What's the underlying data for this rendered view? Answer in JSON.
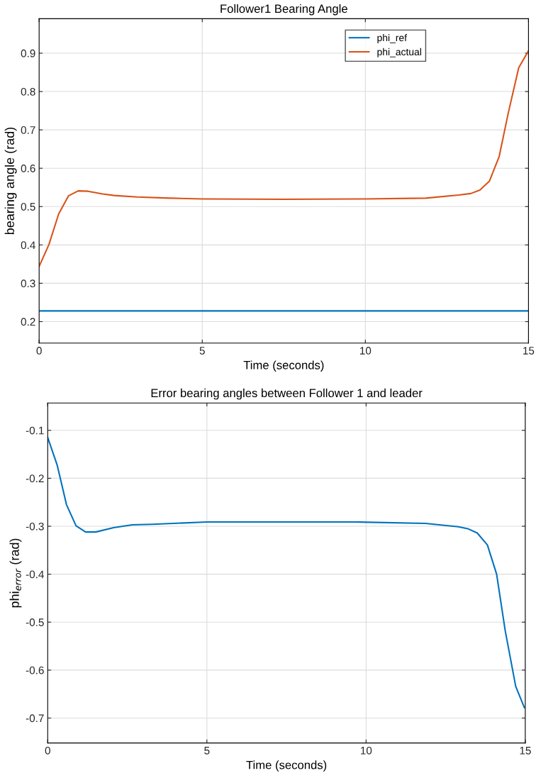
{
  "chart_data": [
    {
      "type": "line",
      "title": "Follower1 Bearing Angle",
      "xlabel": "Time (seconds)",
      "ylabel": "bearing angle (rad)",
      "xlim": [
        0,
        15
      ],
      "xticks": [
        0,
        5,
        10,
        15
      ],
      "ylim": [
        0.144,
        0.99
      ],
      "yticks": [
        0.2,
        0.3,
        0.4,
        0.5,
        0.6,
        0.7,
        0.8,
        0.9
      ],
      "grid": true,
      "legend": "top right",
      "series": [
        {
          "name": "phi_ref",
          "color": "#0072bd",
          "x": [
            0,
            15
          ],
          "values": [
            0.228,
            0.228
          ]
        },
        {
          "name": "phi_actual",
          "color": "#d95319",
          "x": [
            0,
            0.3,
            0.6,
            0.9,
            1.2,
            1.5,
            1.95,
            2.3,
            3,
            4,
            5,
            7.5,
            10,
            11.85,
            12.86,
            13.23,
            13.51,
            13.8,
            14.1,
            14.38,
            14.7,
            15
          ],
          "values": [
            0.344,
            0.401,
            0.481,
            0.528,
            0.541,
            0.54,
            0.533,
            0.529,
            0.525,
            0.522,
            0.52,
            0.519,
            0.52,
            0.522,
            0.53,
            0.534,
            0.543,
            0.566,
            0.63,
            0.744,
            0.862,
            0.906
          ]
        }
      ]
    },
    {
      "type": "line",
      "title": "Error bearing angles between Follower 1 and leader",
      "xlabel": "Time (seconds)",
      "ylabel": "phi$_{error}$ (rad)",
      "xlim": [
        0,
        15
      ],
      "xticks": [
        0,
        5,
        10,
        15
      ],
      "ylim": [
        -0.752,
        -0.043
      ],
      "yticks": [
        {
          "value": -0.7,
          "label": "-0.7"
        },
        {
          "value": -0.6,
          "label": "-0.6"
        },
        {
          "value": -0.5,
          "label": "-0.5"
        },
        {
          "value": -0.4,
          "label": "-0.4"
        },
        {
          "value": -0.3,
          "label": "-0.3"
        },
        {
          "value": -0.2,
          "label": "-0.2"
        },
        {
          "value": -0.1,
          "label": "-0.1"
        }
      ],
      "grid": true,
      "series": [
        {
          "color": "#0072bd",
          "x": [
            0,
            0.3,
            0.59,
            0.89,
            1.19,
            1.51,
            2.07,
            2.66,
            3.3,
            5,
            9.64,
            11.86,
            12.9,
            13.19,
            13.49,
            13.81,
            14.1,
            14.37,
            14.7,
            14.97
          ],
          "values": [
            -0.115,
            -0.173,
            -0.255,
            -0.299,
            -0.312,
            -0.312,
            -0.303,
            -0.297,
            -0.296,
            -0.291,
            -0.291,
            -0.294,
            -0.301,
            -0.305,
            -0.314,
            -0.339,
            -0.4,
            -0.518,
            -0.634,
            -0.678
          ]
        }
      ]
    }
  ]
}
